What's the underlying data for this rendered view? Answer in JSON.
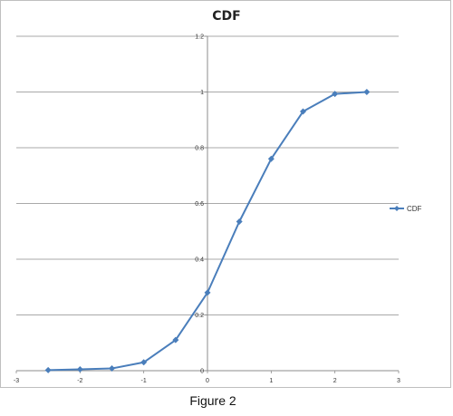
{
  "chart_data": {
    "type": "line",
    "title": "CDF",
    "xlabel": "",
    "ylabel": "",
    "xlim": [
      -3,
      3
    ],
    "ylim": [
      0,
      1.2
    ],
    "x_ticks": [
      -3,
      -2,
      -1,
      0,
      1,
      2,
      3
    ],
    "y_ticks": [
      0,
      0.2,
      0.4,
      0.6,
      0.8,
      1,
      1.2
    ],
    "x_tick_labels": [
      "-3",
      "-2",
      "-1",
      "0",
      "1",
      "2",
      "3"
    ],
    "y_tick_labels": [
      "0",
      "0.2",
      "0.4",
      "0.6",
      "0.8",
      "1",
      "1.2"
    ],
    "grid": "horizontal",
    "legend_position": "right",
    "series": [
      {
        "name": "CDF",
        "color": "#4a7ebb",
        "marker": "diamond",
        "x": [
          -2.5,
          -2.0,
          -1.5,
          -1.0,
          -0.5,
          0.0,
          0.5,
          1.0,
          1.5,
          2.0,
          2.5
        ],
        "y": [
          0.002,
          0.005,
          0.008,
          0.03,
          0.11,
          0.28,
          0.535,
          0.76,
          0.93,
          0.993,
          1.0
        ]
      }
    ]
  },
  "caption": "Figure 2"
}
